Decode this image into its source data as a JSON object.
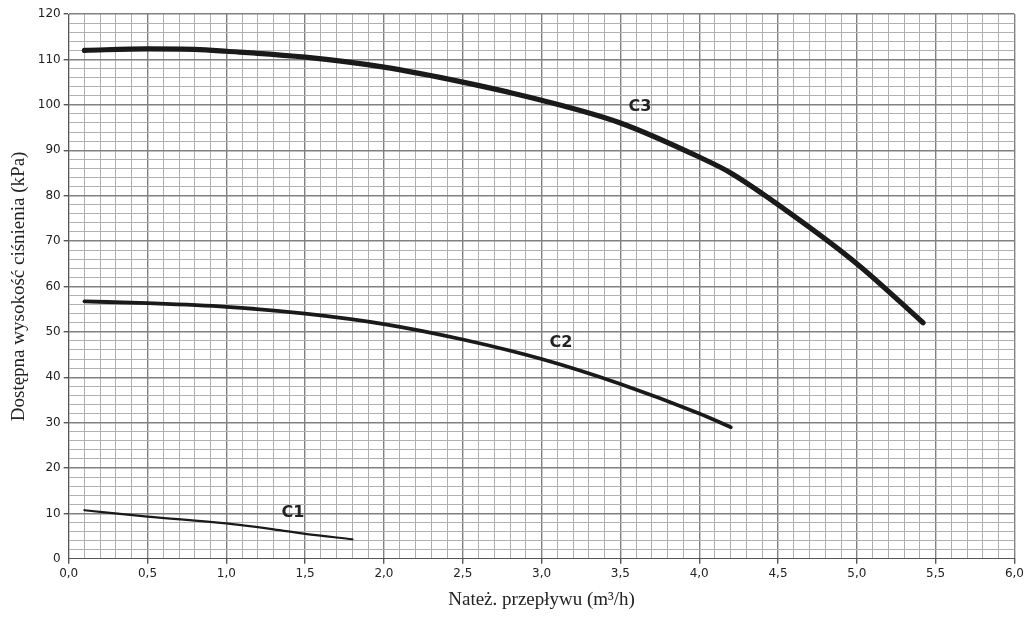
{
  "chart_data": {
    "type": "line",
    "xlabel": "Nateż. przepływu (m³/h)",
    "ylabel": "Dostępna wysokość ciśnienia (kPa)",
    "xlim": [
      0,
      6
    ],
    "ylim": [
      0,
      120
    ],
    "xticks": [
      {
        "value": 0,
        "label": "0,0"
      },
      {
        "value": 0.1,
        "label": null
      },
      {
        "value": 0.2,
        "label": null
      },
      {
        "value": 0.3,
        "label": null
      },
      {
        "value": 0.4,
        "label": null
      },
      {
        "value": 0.5,
        "label": "0,5"
      },
      {
        "value": 0.6,
        "label": null
      },
      {
        "value": 0.7,
        "label": null
      },
      {
        "value": 0.8,
        "label": null
      },
      {
        "value": 0.9,
        "label": null
      },
      {
        "value": 1,
        "label": "1,0"
      },
      {
        "value": 1.1,
        "label": null
      },
      {
        "value": 1.2,
        "label": null
      },
      {
        "value": 1.3,
        "label": null
      },
      {
        "value": 1.4,
        "label": null
      },
      {
        "value": 1.5,
        "label": "1,5"
      },
      {
        "value": 1.6,
        "label": null
      },
      {
        "value": 1.7,
        "label": null
      },
      {
        "value": 1.8,
        "label": null
      },
      {
        "value": 1.9,
        "label": null
      },
      {
        "value": 2,
        "label": "2,0"
      },
      {
        "value": 2.1,
        "label": null
      },
      {
        "value": 2.2,
        "label": null
      },
      {
        "value": 2.3,
        "label": null
      },
      {
        "value": 2.4,
        "label": null
      },
      {
        "value": 2.5,
        "label": "2,5"
      },
      {
        "value": 2.6,
        "label": null
      },
      {
        "value": 2.7,
        "label": null
      },
      {
        "value": 2.8,
        "label": null
      },
      {
        "value": 2.9,
        "label": null
      },
      {
        "value": 3,
        "label": "3,0"
      },
      {
        "value": 3.1,
        "label": null
      },
      {
        "value": 3.2,
        "label": null
      },
      {
        "value": 3.3,
        "label": null
      },
      {
        "value": 3.4,
        "label": null
      },
      {
        "value": 3.5,
        "label": "3,5"
      },
      {
        "value": 3.6,
        "label": null
      },
      {
        "value": 3.7,
        "label": null
      },
      {
        "value": 3.8,
        "label": null
      },
      {
        "value": 3.9,
        "label": null
      },
      {
        "value": 4,
        "label": "4,0"
      },
      {
        "value": 4.1,
        "label": null
      },
      {
        "value": 4.2,
        "label": null
      },
      {
        "value": 4.3,
        "label": null
      },
      {
        "value": 4.4,
        "label": null
      },
      {
        "value": 4.5,
        "label": "4,5"
      },
      {
        "value": 4.6,
        "label": null
      },
      {
        "value": 4.7,
        "label": null
      },
      {
        "value": 4.8,
        "label": null
      },
      {
        "value": 4.9,
        "label": null
      },
      {
        "value": 5,
        "label": "5,0"
      },
      {
        "value": 5.1,
        "label": null
      },
      {
        "value": 5.2,
        "label": null
      },
      {
        "value": 5.3,
        "label": null
      },
      {
        "value": 5.4,
        "label": null
      },
      {
        "value": 5.5,
        "label": "5,5"
      },
      {
        "value": 5.6,
        "label": null
      },
      {
        "value": 5.7,
        "label": null
      },
      {
        "value": 5.8,
        "label": null
      },
      {
        "value": 5.9,
        "label": null
      },
      {
        "value": 6,
        "label": "6,0"
      }
    ],
    "yticks": [
      0,
      {
        "value": 2,
        "label": null
      },
      {
        "value": 4,
        "label": null
      },
      {
        "value": 6,
        "label": null
      },
      {
        "value": 8,
        "label": null
      },
      10,
      {
        "value": 12,
        "label": null
      },
      {
        "value": 14,
        "label": null
      },
      {
        "value": 16,
        "label": null
      },
      {
        "value": 18,
        "label": null
      },
      20,
      {
        "value": 22,
        "label": null
      },
      {
        "value": 24,
        "label": null
      },
      {
        "value": 26,
        "label": null
      },
      {
        "value": 28,
        "label": null
      },
      30,
      {
        "value": 32,
        "label": null
      },
      {
        "value": 34,
        "label": null
      },
      {
        "value": 36,
        "label": null
      },
      {
        "value": 38,
        "label": null
      },
      40,
      {
        "value": 42,
        "label": null
      },
      {
        "value": 44,
        "label": null
      },
      {
        "value": 46,
        "label": null
      },
      {
        "value": 48,
        "label": null
      },
      50,
      {
        "value": 52,
        "label": null
      },
      {
        "value": 54,
        "label": null
      },
      {
        "value": 56,
        "label": null
      },
      {
        "value": 58,
        "label": null
      },
      60,
      {
        "value": 62,
        "label": null
      },
      {
        "value": 64,
        "label": null
      },
      {
        "value": 66,
        "label": null
      },
      {
        "value": 68,
        "label": null
      },
      70,
      {
        "value": 72,
        "label": null
      },
      {
        "value": 74,
        "label": null
      },
      {
        "value": 76,
        "label": null
      },
      {
        "value": 78,
        "label": null
      },
      80,
      {
        "value": 82,
        "label": null
      },
      {
        "value": 84,
        "label": null
      },
      {
        "value": 86,
        "label": null
      },
      {
        "value": 88,
        "label": null
      },
      90,
      {
        "value": 92,
        "label": null
      },
      {
        "value": 94,
        "label": null
      },
      {
        "value": 96,
        "label": null
      },
      {
        "value": 98,
        "label": null
      },
      100,
      {
        "value": 102,
        "label": null
      },
      {
        "value": 104,
        "label": null
      },
      {
        "value": 106,
        "label": null
      },
      {
        "value": 108,
        "label": null
      },
      110,
      {
        "value": 112,
        "label": null
      },
      {
        "value": 114,
        "label": null
      },
      {
        "value": 116,
        "label": null
      },
      {
        "value": 118,
        "label": null
      },
      120
    ],
    "grid": true,
    "legend": false,
    "marker": "none",
    "line_style": "solid",
    "series": [
      {
        "name": "C1",
        "color": "#1a1a1a",
        "x": [
          0.1,
          0.5,
          1.0,
          1.3,
          1.5,
          1.8
        ],
        "values": [
          10.7,
          9.3,
          7.8,
          6.5,
          5.5,
          4.3
        ]
      },
      {
        "name": "C2",
        "color": "#1a1a1a",
        "x": [
          0.1,
          0.5,
          1.0,
          1.5,
          2.0,
          2.5,
          3.0,
          3.5,
          4.0,
          4.2
        ],
        "values": [
          56.7,
          56.3,
          55.5,
          54,
          51.7,
          48.3,
          44,
          38.5,
          32,
          29
        ]
      },
      {
        "name": "C3",
        "color": "#1a1a1a",
        "x": [
          0.1,
          0.5,
          0.8,
          1.0,
          1.5,
          2.0,
          2.5,
          3.0,
          3.5,
          4.0,
          4.2,
          4.5,
          5.0,
          5.42
        ],
        "values": [
          112,
          112.3,
          112.2,
          111.8,
          110.5,
          108.3,
          105,
          101,
          96,
          88.5,
          85,
          78,
          65,
          52
        ]
      }
    ]
  }
}
